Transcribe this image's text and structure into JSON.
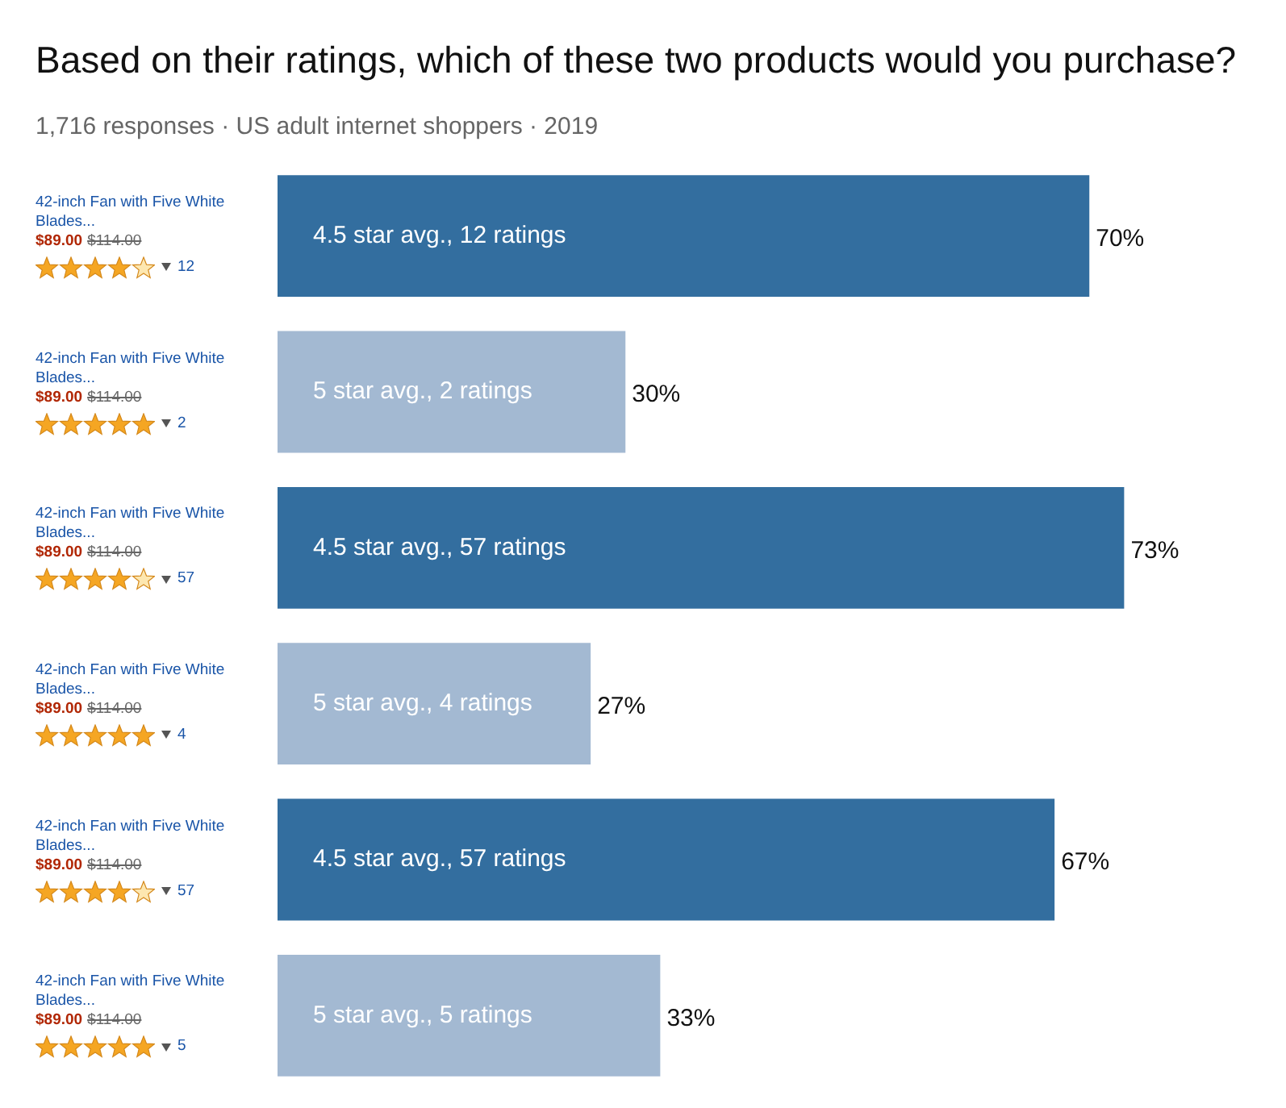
{
  "chart_data": {
    "type": "bar",
    "orientation": "horizontal",
    "title": "Based on their ratings, which of these two products would you purchase?",
    "subtitle": "1,716 responses · US adult internet shoppers · 2019",
    "categories": [
      "4.5 star avg., 12 ratings",
      "5 star avg., 2 ratings",
      "4.5 star avg., 57 ratings",
      "5 star avg., 4 ratings",
      "4.5 star avg., 57 ratings",
      "5 star avg., 5 ratings"
    ],
    "values": [
      70,
      30,
      73,
      27,
      67,
      33
    ],
    "colors": [
      "#336e9f",
      "#a3b9d2",
      "#336e9f",
      "#a3b9d2",
      "#336e9f",
      "#a3b9d2"
    ],
    "value_labels": [
      "70%",
      "30%",
      "73%",
      "27%",
      "67%",
      "33%"
    ],
    "annotations": [
      "42-inch Fan with Five White Blades...",
      "$89.00",
      "$114.00",
      "12",
      "42-inch Fan with Five White Blades...",
      "$89.00",
      "$114.00",
      "2",
      "42-inch Fan with Five White Blades...",
      "$89.00",
      "$114.00",
      "57",
      "42-inch Fan with Five White Blades...",
      "$89.00",
      "$114.00",
      "4",
      "42-inch Fan with Five White Blades...",
      "$89.00",
      "$114.00",
      "57",
      "42-inch Fan with Five White Blades...",
      "$89.00",
      "$114.00",
      "5"
    ]
  }
}
